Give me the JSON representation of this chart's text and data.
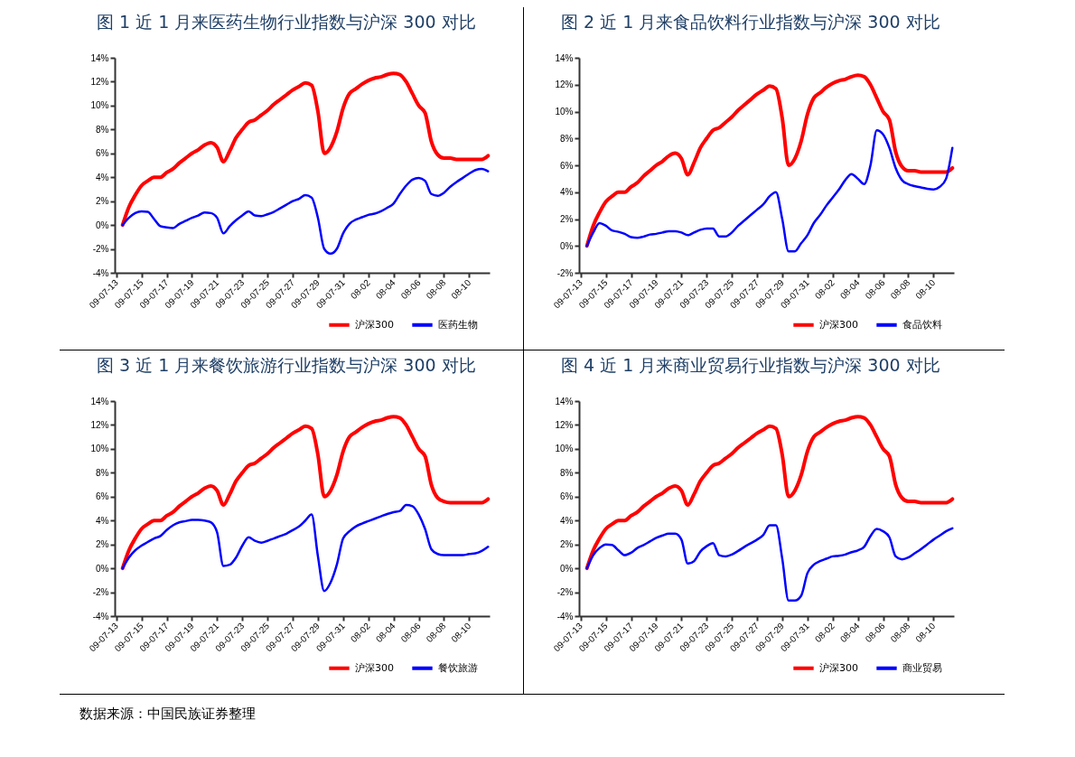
{
  "chart_data": [
    {
      "type": "line",
      "title": "图 1   近 1 月来医药生物行业指数与沪深 300 对比",
      "categories": [
        "09-07-13",
        null,
        null,
        null,
        "09-07-15",
        null,
        null,
        null,
        "09-07-17",
        null,
        null,
        null,
        "09-07-19",
        null,
        null,
        null,
        "09-07-21",
        null,
        null,
        null,
        "09-07-23",
        null,
        null,
        null,
        "09-07-25",
        null,
        null,
        null,
        "09-07-27",
        null,
        null,
        null,
        "09-07-29",
        null,
        null,
        null,
        "09-07-31",
        null,
        null,
        null,
        "08-02",
        null,
        null,
        null,
        "08-04",
        null,
        null,
        null,
        "08-06",
        null,
        null,
        null,
        "08-08",
        null,
        null,
        null,
        "08-10",
        null,
        null,
        null
      ],
      "series": [
        {
          "name": "沪深300",
          "color": "#ff0000",
          "values": [
            null,
            0,
            1.5,
            2.5,
            3.3,
            3.7,
            4.0,
            4.0,
            4.4,
            4.7,
            5.2,
            5.6,
            6.0,
            6.3,
            6.7,
            6.9,
            6.5,
            5.3,
            6.2,
            7.3,
            8.0,
            8.6,
            8.8,
            9.2,
            9.6,
            10.1,
            10.5,
            10.9,
            11.3,
            11.6,
            11.9,
            11.7,
            9.5,
            6.0,
            6.5,
            7.8,
            9.8,
            11.0,
            11.4,
            11.8,
            12.1,
            12.3,
            12.4,
            12.6,
            12.7,
            12.6,
            12.0,
            11.0,
            10.0,
            9.4,
            7.0,
            5.9,
            5.6,
            5.6,
            5.5,
            5.5,
            5.5,
            5.5,
            5.5,
            5.8
          ]
        },
        {
          "name": "医药生物",
          "color": "#0000ff",
          "values": [
            null,
            0,
            0.6,
            1.0,
            1.15,
            1.1,
            0.5,
            -0.1,
            -0.2,
            -0.25,
            0.1,
            0.35,
            0.6,
            0.8,
            1.05,
            1.0,
            0.6,
            -0.7,
            -0.1,
            0.4,
            0.8,
            1.15,
            0.8,
            0.75,
            0.9,
            1.1,
            1.4,
            1.7,
            2.0,
            2.2,
            2.5,
            2.3,
            0.6,
            -2.0,
            -2.4,
            -2.0,
            -0.7,
            0.1,
            0.45,
            0.65,
            0.85,
            0.95,
            1.15,
            1.45,
            1.8,
            2.6,
            3.3,
            3.8,
            3.95,
            3.7,
            2.6,
            2.45,
            2.7,
            3.2,
            3.6,
            3.95,
            4.3,
            4.6,
            4.7,
            4.5
          ]
        }
      ],
      "ylim": [
        -4,
        14
      ],
      "yticks": [
        {
          "value": -4,
          "label": "-4%"
        },
        {
          "value": -2,
          "label": "-2%"
        },
        {
          "value": 0,
          "label": "0%"
        },
        {
          "value": 2,
          "label": "2%"
        },
        {
          "value": 4,
          "label": "4%"
        },
        {
          "value": 6,
          "label": "6%"
        },
        {
          "value": 8,
          "label": "8%"
        },
        {
          "value": 10,
          "label": "10%"
        },
        {
          "value": 12,
          "label": "12%"
        },
        {
          "value": 14,
          "label": "14%"
        }
      ],
      "grid": false,
      "legend": "bottom right"
    },
    {
      "type": "line",
      "title": "图 2   近 1 月来食品饮料行业指数与沪深 300 对比",
      "categories": [
        "09-07-13",
        null,
        null,
        null,
        "09-07-15",
        null,
        null,
        null,
        "09-07-17",
        null,
        null,
        null,
        "09-07-19",
        null,
        null,
        null,
        "09-07-21",
        null,
        null,
        null,
        "09-07-23",
        null,
        null,
        null,
        "09-07-25",
        null,
        null,
        null,
        "09-07-27",
        null,
        null,
        null,
        "09-07-29",
        null,
        null,
        null,
        "09-07-31",
        null,
        null,
        null,
        "08-02",
        null,
        null,
        null,
        "08-04",
        null,
        null,
        null,
        "08-06",
        null,
        null,
        null,
        "08-08",
        null,
        null,
        null,
        "08-10",
        null,
        null,
        null
      ],
      "series": [
        {
          "name": "沪深300",
          "color": "#ff0000",
          "values": [
            null,
            0,
            1.5,
            2.5,
            3.3,
            3.7,
            4.0,
            4.0,
            4.4,
            4.7,
            5.2,
            5.6,
            6.0,
            6.3,
            6.7,
            6.9,
            6.5,
            5.3,
            6.2,
            7.3,
            8.0,
            8.6,
            8.8,
            9.2,
            9.6,
            10.1,
            10.5,
            10.9,
            11.3,
            11.6,
            11.9,
            11.7,
            9.5,
            6.0,
            6.5,
            7.8,
            9.8,
            11.0,
            11.4,
            11.8,
            12.1,
            12.3,
            12.4,
            12.6,
            12.7,
            12.6,
            12.0,
            11.0,
            10.0,
            9.4,
            7.0,
            5.9,
            5.6,
            5.6,
            5.5,
            5.5,
            5.5,
            5.5,
            5.5,
            5.8
          ]
        },
        {
          "name": "食品饮料",
          "color": "#0000ff",
          "values": [
            null,
            0,
            1.0,
            1.7,
            1.5,
            1.15,
            1.05,
            0.9,
            0.65,
            0.6,
            0.7,
            0.85,
            0.9,
            1.0,
            1.1,
            1.1,
            1.0,
            0.8,
            1.0,
            1.2,
            1.3,
            1.3,
            0.7,
            0.7,
            1.0,
            1.5,
            1.9,
            2.3,
            2.7,
            3.1,
            3.7,
            4.0,
            2.0,
            -0.4,
            -0.4,
            0.2,
            0.8,
            1.7,
            2.3,
            3.0,
            3.6,
            4.2,
            4.9,
            5.35,
            5.0,
            4.6,
            6.0,
            8.6,
            8.3,
            7.3,
            5.8,
            4.9,
            4.6,
            4.45,
            4.35,
            4.25,
            4.2,
            4.4,
            5.0,
            7.3
          ]
        }
      ],
      "ylim": [
        -2,
        14
      ],
      "yticks": [
        {
          "value": -2,
          "label": "-2%"
        },
        {
          "value": 0,
          "label": "0%"
        },
        {
          "value": 2,
          "label": "2%"
        },
        {
          "value": 4,
          "label": "4%"
        },
        {
          "value": 6,
          "label": "6%"
        },
        {
          "value": 8,
          "label": "8%"
        },
        {
          "value": 10,
          "label": "10%"
        },
        {
          "value": 12,
          "label": "12%"
        },
        {
          "value": 14,
          "label": "14%"
        }
      ],
      "grid": false,
      "legend": "bottom right"
    },
    {
      "type": "line",
      "title": "图 3   近 1 月来餐饮旅游行业指数与沪深 300 对比",
      "categories": [
        "09-07-13",
        null,
        null,
        null,
        "09-07-15",
        null,
        null,
        null,
        "09-07-17",
        null,
        null,
        null,
        "09-07-19",
        null,
        null,
        null,
        "09-07-21",
        null,
        null,
        null,
        "09-07-23",
        null,
        null,
        null,
        "09-07-25",
        null,
        null,
        null,
        "09-07-27",
        null,
        null,
        null,
        "09-07-29",
        null,
        null,
        null,
        "09-07-31",
        null,
        null,
        null,
        "08-02",
        null,
        null,
        null,
        "08-04",
        null,
        null,
        null,
        "08-06",
        null,
        null,
        null,
        "08-08",
        null,
        null,
        null,
        "08-10",
        null,
        null,
        null
      ],
      "series": [
        {
          "name": "沪深300",
          "color": "#ff0000",
          "values": [
            null,
            0,
            1.5,
            2.5,
            3.3,
            3.7,
            4.0,
            4.0,
            4.4,
            4.7,
            5.2,
            5.6,
            6.0,
            6.3,
            6.7,
            6.9,
            6.5,
            5.3,
            6.2,
            7.3,
            8.0,
            8.6,
            8.8,
            9.2,
            9.6,
            10.1,
            10.5,
            10.9,
            11.3,
            11.6,
            11.9,
            11.7,
            9.5,
            6.0,
            6.5,
            7.8,
            9.8,
            11.0,
            11.4,
            11.8,
            12.1,
            12.3,
            12.4,
            12.6,
            12.7,
            12.6,
            12.0,
            11.0,
            10.0,
            9.4,
            7.0,
            5.9,
            5.6,
            5.5,
            5.5,
            5.5,
            5.5,
            5.5,
            5.5,
            5.8
          ]
        },
        {
          "name": "餐饮旅游",
          "color": "#0000ff",
          "values": [
            null,
            0,
            0.9,
            1.5,
            1.9,
            2.2,
            2.5,
            2.7,
            3.2,
            3.6,
            3.85,
            3.95,
            4.05,
            4.05,
            4.0,
            3.85,
            3.0,
            0.2,
            0.3,
            0.9,
            1.9,
            2.6,
            2.3,
            2.15,
            2.3,
            2.5,
            2.7,
            2.9,
            3.2,
            3.5,
            4.0,
            4.5,
            1.0,
            -1.9,
            -1.2,
            0.3,
            2.5,
            3.1,
            3.5,
            3.75,
            3.95,
            4.15,
            4.35,
            4.55,
            4.7,
            4.8,
            5.3,
            5.2,
            4.5,
            3.3,
            1.6,
            1.2,
            1.1,
            1.1,
            1.1,
            1.1,
            1.2,
            1.25,
            1.45,
            1.8
          ]
        }
      ],
      "ylim": [
        -4,
        14
      ],
      "yticks": [
        {
          "value": -4,
          "label": "-4%"
        },
        {
          "value": -2,
          "label": "-2%"
        },
        {
          "value": 0,
          "label": "0%"
        },
        {
          "value": 2,
          "label": "2%"
        },
        {
          "value": 4,
          "label": "4%"
        },
        {
          "value": 6,
          "label": "6%"
        },
        {
          "value": 8,
          "label": "8%"
        },
        {
          "value": 10,
          "label": "10%"
        },
        {
          "value": 12,
          "label": "12%"
        },
        {
          "value": 14,
          "label": "14%"
        }
      ],
      "grid": false,
      "legend": "bottom right"
    },
    {
      "type": "line",
      "title": "图 4  近 1 月来商业贸易行业指数与沪深 300 对比",
      "categories": [
        "09-07-13",
        null,
        null,
        null,
        "09-07-15",
        null,
        null,
        null,
        "09-07-17",
        null,
        null,
        null,
        "09-07-19",
        null,
        null,
        null,
        "09-07-21",
        null,
        null,
        null,
        "09-07-23",
        null,
        null,
        null,
        "09-07-25",
        null,
        null,
        null,
        "09-07-27",
        null,
        null,
        null,
        "09-07-29",
        null,
        null,
        null,
        "09-07-31",
        null,
        null,
        null,
        "08-02",
        null,
        null,
        null,
        "08-04",
        null,
        null,
        null,
        "08-06",
        null,
        null,
        null,
        "08-08",
        null,
        null,
        null,
        "08-10",
        null,
        null,
        null
      ],
      "series": [
        {
          "name": "沪深300",
          "color": "#ff0000",
          "values": [
            null,
            0,
            1.5,
            2.5,
            3.3,
            3.7,
            4.0,
            4.0,
            4.4,
            4.7,
            5.2,
            5.6,
            6.0,
            6.3,
            6.7,
            6.9,
            6.5,
            5.3,
            6.2,
            7.3,
            8.0,
            8.6,
            8.8,
            9.2,
            9.6,
            10.1,
            10.5,
            10.9,
            11.3,
            11.6,
            11.9,
            11.7,
            9.5,
            6.0,
            6.5,
            7.8,
            9.8,
            11.0,
            11.4,
            11.8,
            12.1,
            12.3,
            12.4,
            12.6,
            12.7,
            12.6,
            12.0,
            11.0,
            10.0,
            9.4,
            7.0,
            5.9,
            5.6,
            5.6,
            5.5,
            5.5,
            5.5,
            5.5,
            5.5,
            5.8
          ]
        },
        {
          "name": "商业贸易",
          "color": "#0000ff",
          "values": [
            null,
            0,
            1.1,
            1.7,
            2.0,
            1.95,
            1.5,
            1.1,
            1.3,
            1.7,
            1.95,
            2.25,
            2.55,
            2.75,
            2.9,
            2.9,
            2.4,
            0.4,
            0.6,
            1.4,
            1.85,
            2.1,
            1.1,
            1.0,
            1.15,
            1.45,
            1.8,
            2.1,
            2.4,
            2.8,
            3.6,
            3.6,
            0.8,
            -2.7,
            -2.7,
            -2.3,
            -0.4,
            0.3,
            0.6,
            0.8,
            1.0,
            1.05,
            1.15,
            1.35,
            1.5,
            1.8,
            2.7,
            3.3,
            3.1,
            2.6,
            1.0,
            0.75,
            0.9,
            1.25,
            1.6,
            2.0,
            2.4,
            2.75,
            3.1,
            3.35
          ]
        }
      ],
      "ylim": [
        -4,
        14
      ],
      "yticks": [
        {
          "value": -4,
          "label": "-4%"
        },
        {
          "value": -2,
          "label": "-2%"
        },
        {
          "value": 0,
          "label": "0%"
        },
        {
          "value": 2,
          "label": "2%"
        },
        {
          "value": 4,
          "label": "4%"
        },
        {
          "value": 6,
          "label": "6%"
        },
        {
          "value": 8,
          "label": "8%"
        },
        {
          "value": 10,
          "label": "10%"
        },
        {
          "value": 12,
          "label": "12%"
        },
        {
          "value": 14,
          "label": "14%"
        }
      ],
      "grid": false,
      "legend": "bottom right",
      "annotations": [
        "数据来源：中国民族证券整理"
      ]
    }
  ]
}
